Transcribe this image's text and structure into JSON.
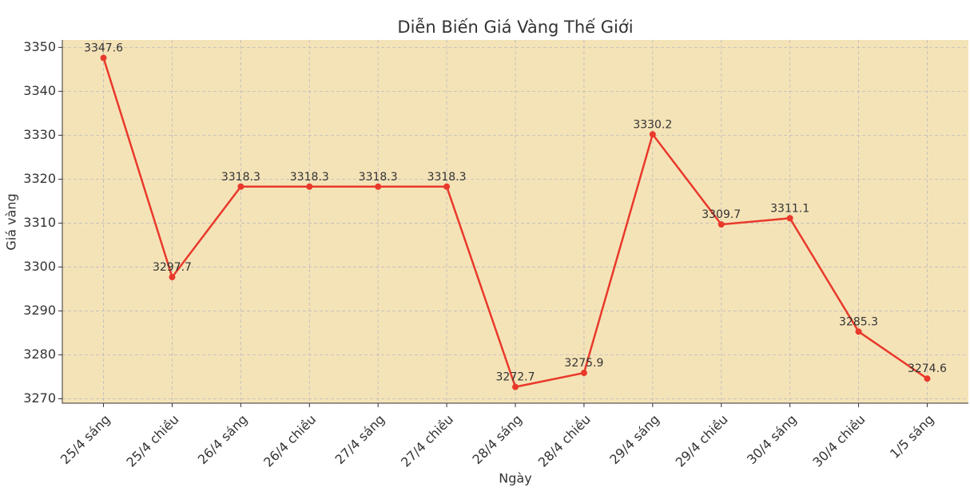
{
  "chart_data": {
    "type": "line",
    "title": "Diễn Biến Giá Vàng Thế Giới",
    "x_label": "Ngày",
    "y_label": "Giá vàng",
    "categories": [
      "25/4 sáng",
      "25/4 chiều",
      "26/4 sáng",
      "26/4 chiều",
      "27/4 sáng",
      "27/4 chiều",
      "28/4 sáng",
      "28/4 chiều",
      "29/4 sáng",
      "29/4 chiều",
      "30/4 sáng",
      "30/4 chiều",
      "1/5 sáng"
    ],
    "series": [
      {
        "name": "Giá vàng",
        "color": "#e8392b",
        "values": [
          3347.6,
          3297.7,
          3318.3,
          3318.3,
          3318.3,
          3318.3,
          3272.7,
          3275.9,
          3330.2,
          3309.7,
          3311.1,
          3285.3,
          3274.6
        ]
      }
    ],
    "ylim": [
      3269,
      3351.7
    ],
    "yticks": [
      3270,
      3280,
      3290,
      3300,
      3310,
      3320,
      3330,
      3340,
      3350
    ],
    "grid": true,
    "background": "#f5e3b8"
  }
}
